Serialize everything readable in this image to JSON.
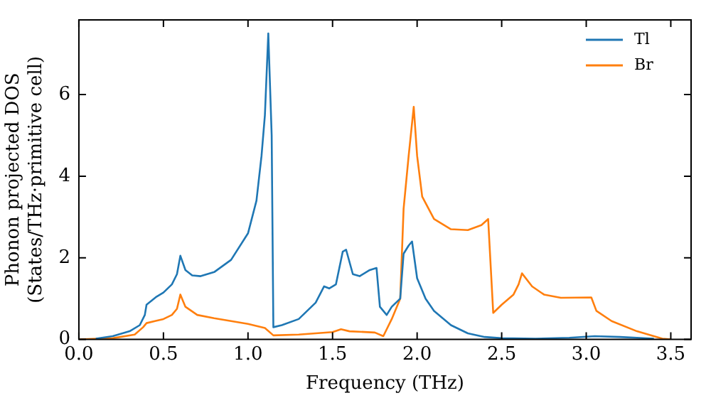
{
  "chart_data": {
    "type": "line",
    "xlabel": "Frequency (THz)",
    "ylabel": "Phonon projected DOS\n(States/THz·primitive cell)",
    "xlim": [
      0,
      3.62
    ],
    "ylim": [
      0,
      7.83
    ],
    "xticks": [
      {
        "value": 0,
        "label": "0.0"
      },
      {
        "value": 0.5,
        "label": "0.5"
      },
      {
        "value": 1,
        "label": "1.0"
      },
      {
        "value": 1.5,
        "label": "1.5"
      },
      {
        "value": 2,
        "label": "2.0"
      },
      {
        "value": 2.5,
        "label": "2.5"
      },
      {
        "value": 3,
        "label": "3.0"
      },
      {
        "value": 3.5,
        "label": "3.5"
      }
    ],
    "yticks": [
      0,
      2,
      4,
      6
    ],
    "grid": false,
    "legend": "top right",
    "line_style": "solid",
    "marker": "none",
    "series": [
      {
        "name": "Tl",
        "color": "#1f77b4",
        "x": [
          0.1,
          0.2,
          0.3,
          0.36,
          0.39,
          0.4,
          0.43,
          0.46,
          0.5,
          0.55,
          0.58,
          0.6,
          0.63,
          0.67,
          0.72,
          0.8,
          0.9,
          1.0,
          1.05,
          1.08,
          1.1,
          1.12,
          1.14,
          1.15,
          1.2,
          1.3,
          1.4,
          1.45,
          1.48,
          1.52,
          1.56,
          1.58,
          1.62,
          1.66,
          1.72,
          1.76,
          1.78,
          1.82,
          1.85,
          1.9,
          1.92,
          1.95,
          1.97,
          2.0,
          2.05,
          2.1,
          2.2,
          2.3,
          2.4,
          2.5,
          2.7,
          2.9,
          3.05,
          3.2,
          3.4
        ],
        "values": [
          0.02,
          0.08,
          0.2,
          0.35,
          0.6,
          0.85,
          0.95,
          1.05,
          1.15,
          1.35,
          1.6,
          2.05,
          1.7,
          1.57,
          1.55,
          1.65,
          1.95,
          2.6,
          3.4,
          4.5,
          5.5,
          7.5,
          5.0,
          0.3,
          0.35,
          0.5,
          0.9,
          1.3,
          1.25,
          1.35,
          2.15,
          2.2,
          1.6,
          1.55,
          1.7,
          1.75,
          0.8,
          0.6,
          0.8,
          1.0,
          2.1,
          2.3,
          2.4,
          1.5,
          1.0,
          0.7,
          0.35,
          0.15,
          0.06,
          0.03,
          0.02,
          0.04,
          0.08,
          0.06,
          0.02
        ]
      },
      {
        "name": "Br",
        "color": "#ff7f0e",
        "x": [
          0,
          0.2,
          0.33,
          0.38,
          0.4,
          0.45,
          0.5,
          0.55,
          0.58,
          0.6,
          0.63,
          0.7,
          0.8,
          0.9,
          1.0,
          1.1,
          1.15,
          1.3,
          1.5,
          1.55,
          1.6,
          1.75,
          1.8,
          1.85,
          1.9,
          1.92,
          1.95,
          1.98,
          2.0,
          2.03,
          2.1,
          2.2,
          2.3,
          2.38,
          2.42,
          2.45,
          2.5,
          2.57,
          2.6,
          2.62,
          2.68,
          2.75,
          2.85,
          3.03,
          3.06,
          3.15,
          3.3,
          3.45,
          3.5
        ],
        "values": [
          0,
          0.03,
          0.12,
          0.3,
          0.4,
          0.45,
          0.5,
          0.6,
          0.75,
          1.1,
          0.8,
          0.6,
          0.52,
          0.45,
          0.38,
          0.28,
          0.1,
          0.12,
          0.18,
          0.25,
          0.2,
          0.17,
          0.08,
          0.5,
          1.0,
          3.2,
          4.5,
          5.7,
          4.5,
          3.5,
          2.95,
          2.7,
          2.68,
          2.8,
          2.95,
          0.65,
          0.85,
          1.1,
          1.35,
          1.62,
          1.3,
          1.1,
          1.02,
          1.03,
          0.7,
          0.45,
          0.2,
          0.02,
          0
        ]
      }
    ]
  }
}
